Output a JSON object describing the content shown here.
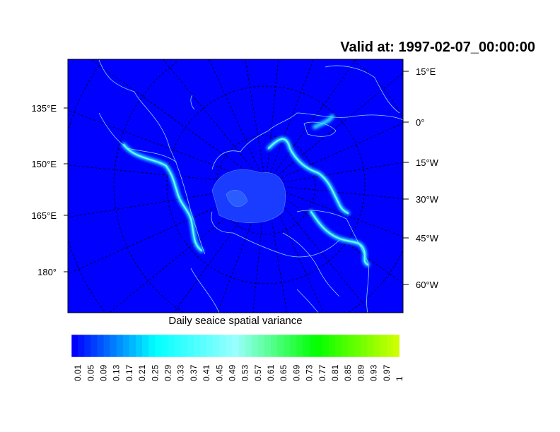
{
  "title": "Valid at: 1997-02-07_00:00:00",
  "caption": "Daily seaice spatial variance",
  "left_labels": [
    "135°E",
    "150°E",
    "165°E",
    "180°"
  ],
  "right_labels": [
    "15°E",
    "0°",
    "15°W",
    "30°W",
    "45°W",
    "60°W"
  ],
  "colorbar": {
    "labels": [
      "0.01",
      "0.05",
      "0.09",
      "0.13",
      "0.17",
      "0.21",
      "0.25",
      "0.29",
      "0.33",
      "0.37",
      "0.41",
      "0.45",
      "0.49",
      "0.53",
      "0.57",
      "0.61",
      "0.65",
      "0.69",
      "0.73",
      "0.77",
      "0.81",
      "0.85",
      "0.89",
      "0.93",
      "0.97",
      "1"
    ],
    "range": [
      0.01,
      1
    ],
    "colors": {
      "low": "#0000ff",
      "mid_low": "#00ffff",
      "mid": "#99ffff",
      "mid_high": "#00ff00",
      "high": "#ccff00"
    }
  },
  "map": {
    "ocean_color": "#0000ff",
    "coast_color": "#7fd8ff",
    "ice_edge_color": "#33ffff",
    "projection": "polar stereographic"
  }
}
